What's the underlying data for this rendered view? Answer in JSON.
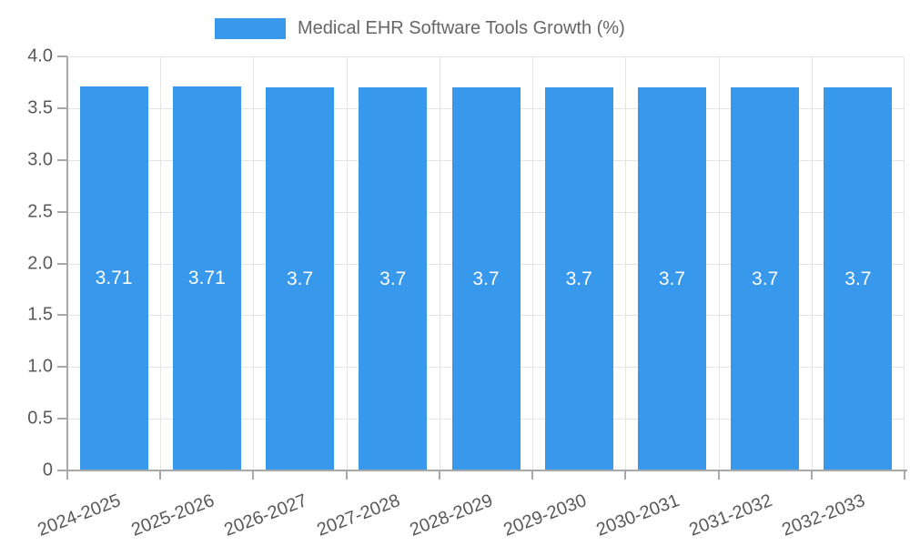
{
  "chart_data": {
    "type": "bar",
    "title": "Medical EHR Software Tools Growth (%)",
    "categories": [
      "2024-2025",
      "2025-2026",
      "2026-2027",
      "2027-2028",
      "2028-2029",
      "2029-2030",
      "2030-2031",
      "2031-2032",
      "2032-2033"
    ],
    "values": [
      3.71,
      3.71,
      3.7,
      3.7,
      3.7,
      3.7,
      3.7,
      3.7,
      3.7
    ],
    "bar_labels": [
      "3.71",
      "3.71",
      "3.7",
      "3.7",
      "3.7",
      "3.7",
      "3.7",
      "3.7",
      "3.7"
    ],
    "xlabel": "",
    "ylabel": "",
    "ylim": [
      0,
      4
    ],
    "ytick_values": [
      4.0,
      3.5,
      3.0,
      2.5,
      2.0,
      1.5,
      1.0,
      0.5,
      0
    ],
    "ytick_labels": [
      "4.0",
      "3.5",
      "3.0",
      "2.5",
      "2.0",
      "1.5",
      "1.0",
      "0.5",
      "0"
    ],
    "grid": true,
    "legend_position": "top"
  },
  "colors": {
    "bar": "#3898ec",
    "grid": "#e4e4e4",
    "axis": "#a8a8a8",
    "tick_text": "#595959",
    "title_text": "#666666",
    "bar_label_text": "#ffffff",
    "background": "#ffffff"
  }
}
